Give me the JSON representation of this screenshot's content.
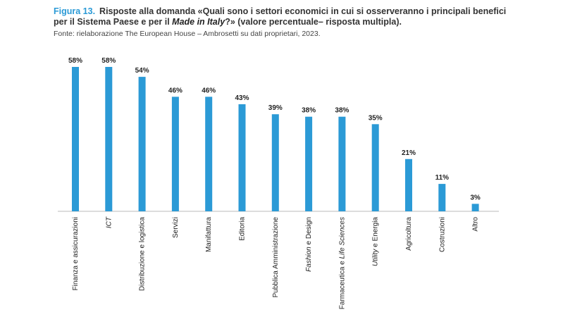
{
  "figure": {
    "label": "Figura 13.",
    "title_line1": "Risposte alla domanda «Quali sono i settori economici in cui si osserveranno i principali benefici",
    "title_line2_a": "per il Sistema Paese e per il ",
    "title_line2_italic": "Made in Italy",
    "title_line2_b": "?» (valore percentuale– risposta multipla).",
    "source": "Fonte: rielaborazione The European House – Ambrosetti su dati proprietari, 2023."
  },
  "colors": {
    "bar": "#2b9ad6",
    "accent": "#2b9ad6",
    "axis": "#bbbbbb"
  },
  "chart_data": {
    "type": "bar",
    "categories": [
      "Finanza e assicurazioni",
      "ICT",
      "Distribuzione e logistica",
      "Servizi",
      "Manifattura",
      "Editoria",
      "Pubblica Amministrazione",
      "Fashion e Design",
      "Farmaceutica e Life Sciences",
      "Utility e Energia",
      "Agricoltura",
      "Costruzioni",
      "Altro"
    ],
    "values": [
      58,
      58,
      54,
      46,
      46,
      43,
      39,
      38,
      38,
      35,
      21,
      11,
      3
    ],
    "value_labels": [
      "58%",
      "58%",
      "54%",
      "46%",
      "46%",
      "43%",
      "39%",
      "38%",
      "38%",
      "35%",
      "21%",
      "11%",
      "3%"
    ],
    "ylim": [
      0,
      60
    ],
    "grid": false,
    "legend": "none"
  }
}
